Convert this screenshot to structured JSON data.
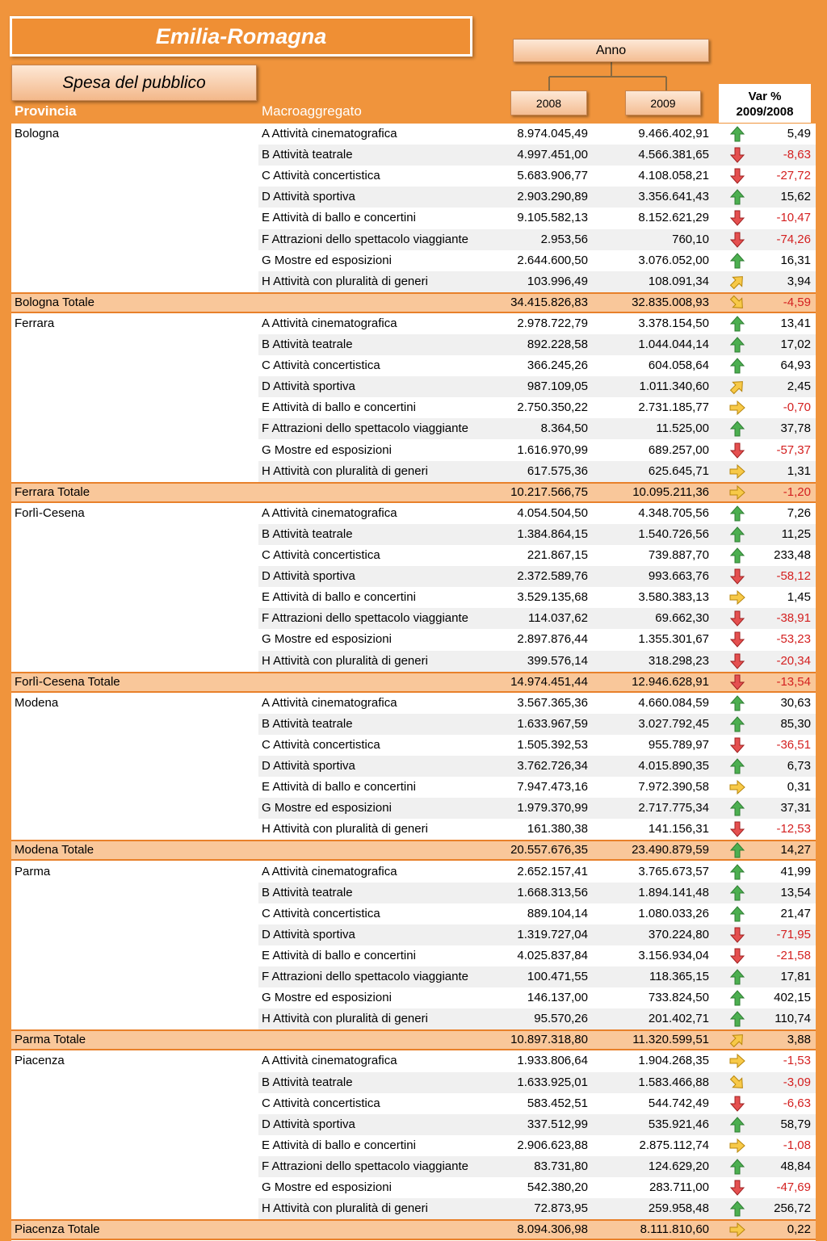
{
  "header": {
    "title": "Emilia-Romagna",
    "subtitle": "Spesa del pubblico",
    "year_label": "Anno",
    "years": [
      "2008",
      "2009"
    ],
    "var_label": [
      "Var %",
      "2009/2008"
    ],
    "columns": [
      "Provincia",
      "Macroaggregato"
    ]
  },
  "table": {
    "groups": [
      {
        "province": "Bologna",
        "rows": [
          [
            "A Attività cinematografica",
            "8.974.045,49",
            "9.466.402,91",
            "5,49"
          ],
          [
            "B Attività teatrale",
            "4.997.451,00",
            "4.566.381,65",
            "-8,63"
          ],
          [
            "C Attività concertistica",
            "5.683.906,77",
            "4.108.058,21",
            "-27,72"
          ],
          [
            "D Attività sportiva",
            "2.903.290,89",
            "3.356.641,43",
            "15,62"
          ],
          [
            "E Attività di ballo e concertini",
            "9.105.582,13",
            "8.152.621,29",
            "-10,47"
          ],
          [
            "F Attrazioni dello spettacolo viaggiante",
            "2.953,56",
            "760,10",
            "-74,26"
          ],
          [
            "G Mostre ed esposizioni",
            "2.644.600,50",
            "3.076.052,00",
            "16,31"
          ],
          [
            "H Attività con pluralità di generi",
            "103.996,49",
            "108.091,34",
            "3,94"
          ]
        ],
        "total": [
          "Bologna Totale",
          "34.415.826,83",
          "32.835.008,93",
          "-4,59"
        ]
      },
      {
        "province": "Ferrara",
        "rows": [
          [
            "A Attività cinematografica",
            "2.978.722,79",
            "3.378.154,50",
            "13,41"
          ],
          [
            "B Attività teatrale",
            "892.228,58",
            "1.044.044,14",
            "17,02"
          ],
          [
            "C Attività concertistica",
            "366.245,26",
            "604.058,64",
            "64,93"
          ],
          [
            "D Attività sportiva",
            "987.109,05",
            "1.011.340,60",
            "2,45"
          ],
          [
            "E Attività di ballo e concertini",
            "2.750.350,22",
            "2.731.185,77",
            "-0,70"
          ],
          [
            "F Attrazioni dello spettacolo viaggiante",
            "8.364,50",
            "11.525,00",
            "37,78"
          ],
          [
            "G Mostre ed esposizioni",
            "1.616.970,99",
            "689.257,00",
            "-57,37"
          ],
          [
            "H Attività con pluralità di generi",
            "617.575,36",
            "625.645,71",
            "1,31"
          ]
        ],
        "total": [
          "Ferrara Totale",
          "10.217.566,75",
          "10.095.211,36",
          "-1,20"
        ]
      },
      {
        "province": "Forlì-Cesena",
        "rows": [
          [
            "A Attività cinematografica",
            "4.054.504,50",
            "4.348.705,56",
            "7,26"
          ],
          [
            "B Attività teatrale",
            "1.384.864,15",
            "1.540.726,56",
            "11,25"
          ],
          [
            "C Attività concertistica",
            "221.867,15",
            "739.887,70",
            "233,48"
          ],
          [
            "D Attività sportiva",
            "2.372.589,76",
            "993.663,76",
            "-58,12"
          ],
          [
            "E Attività di ballo e concertini",
            "3.529.135,68",
            "3.580.383,13",
            "1,45"
          ],
          [
            "F Attrazioni dello spettacolo viaggiante",
            "114.037,62",
            "69.662,30",
            "-38,91"
          ],
          [
            "G Mostre ed esposizioni",
            "2.897.876,44",
            "1.355.301,67",
            "-53,23"
          ],
          [
            "H Attività con pluralità di generi",
            "399.576,14",
            "318.298,23",
            "-20,34"
          ]
        ],
        "total": [
          "Forlì-Cesena Totale",
          "14.974.451,44",
          "12.946.628,91",
          "-13,54"
        ]
      },
      {
        "province": "Modena",
        "rows": [
          [
            "A Attività cinematografica",
            "3.567.365,36",
            "4.660.084,59",
            "30,63"
          ],
          [
            "B Attività teatrale",
            "1.633.967,59",
            "3.027.792,45",
            "85,30"
          ],
          [
            "C Attività concertistica",
            "1.505.392,53",
            "955.789,97",
            "-36,51"
          ],
          [
            "D Attività sportiva",
            "3.762.726,34",
            "4.015.890,35",
            "6,73"
          ],
          [
            "E Attività di ballo e concertini",
            "7.947.473,16",
            "7.972.390,58",
            "0,31"
          ],
          [
            "G Mostre ed esposizioni",
            "1.979.370,99",
            "2.717.775,34",
            "37,31"
          ],
          [
            "H Attività con pluralità di generi",
            "161.380,38",
            "141.156,31",
            "-12,53"
          ]
        ],
        "total": [
          "Modena Totale",
          "20.557.676,35",
          "23.490.879,59",
          "14,27"
        ]
      },
      {
        "province": "Parma",
        "rows": [
          [
            "A Attività cinematografica",
            "2.652.157,41",
            "3.765.673,57",
            "41,99"
          ],
          [
            "B Attività teatrale",
            "1.668.313,56",
            "1.894.141,48",
            "13,54"
          ],
          [
            "C Attività concertistica",
            "889.104,14",
            "1.080.033,26",
            "21,47"
          ],
          [
            "D Attività sportiva",
            "1.319.727,04",
            "370.224,80",
            "-71,95"
          ],
          [
            "E Attività di ballo e concertini",
            "4.025.837,84",
            "3.156.934,04",
            "-21,58"
          ],
          [
            "F Attrazioni dello spettacolo viaggiante",
            "100.471,55",
            "118.365,15",
            "17,81"
          ],
          [
            "G Mostre ed esposizioni",
            "146.137,00",
            "733.824,50",
            "402,15"
          ],
          [
            "H Attività con pluralità di generi",
            "95.570,26",
            "201.402,71",
            "110,74"
          ]
        ],
        "total": [
          "Parma Totale",
          "10.897.318,80",
          "11.320.599,51",
          "3,88"
        ]
      },
      {
        "province": "Piacenza",
        "rows": [
          [
            "A Attività cinematografica",
            "1.933.806,64",
            "1.904.268,35",
            "-1,53"
          ],
          [
            "B Attività teatrale",
            "1.633.925,01",
            "1.583.466,88",
            "-3,09"
          ],
          [
            "C Attività concertistica",
            "583.452,51",
            "544.742,49",
            "-6,63"
          ],
          [
            "D Attività sportiva",
            "337.512,99",
            "535.921,46",
            "58,79"
          ],
          [
            "E Attività di ballo e concertini",
            "2.906.623,88",
            "2.875.112,74",
            "-1,08"
          ],
          [
            "F Attrazioni dello spettacolo viaggiante",
            "83.731,80",
            "124.629,20",
            "48,84"
          ],
          [
            "G Mostre ed esposizioni",
            "542.380,20",
            "283.711,00",
            "-47,69"
          ],
          [
            "H Attività con pluralità di generi",
            "72.873,95",
            "259.958,48",
            "256,72"
          ]
        ],
        "total": [
          "Piacenza Totale",
          "8.094.306,98",
          "8.111.810,60",
          "0,22"
        ]
      }
    ]
  }
}
